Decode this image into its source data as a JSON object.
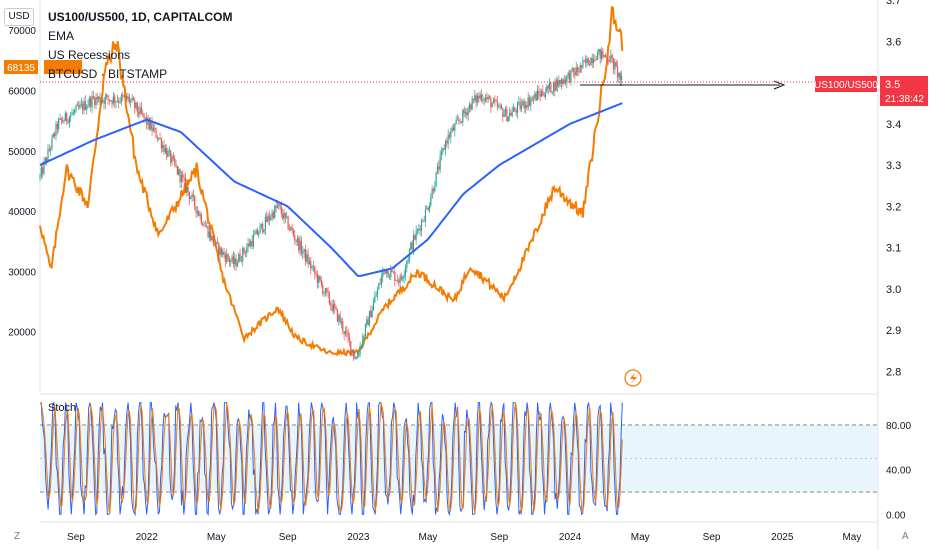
{
  "toolbar": {
    "currency_button": "USD",
    "zoom_button": "Z",
    "auto_button": "A"
  },
  "legend": {
    "title": "US100/US500, 1D, CAPITALCOM",
    "ema_label": "EMA",
    "recessions_label": "US Recessions",
    "btc_label": "BTCUSD · BITSTAMP"
  },
  "badges": {
    "btc_price": "68135",
    "symbol_tag": "US100/US500",
    "ratio_value": "3.5",
    "countdown": "21:38:42"
  },
  "colors": {
    "candle_up": "#26a69a",
    "candle_down": "#ef5350",
    "ema": "#2962ff",
    "btc": "#f57c00",
    "stoch_k": "#2962ff",
    "stoch_d": "#f57c00",
    "stoch_band": "#e3f2fd",
    "badge_red": "#f23645"
  },
  "chart_data": [
    {
      "type": "line",
      "name": "main-pane",
      "x_range": [
        "2021-07-01",
        "2025-06-15"
      ],
      "x_ticks": [
        {
          "date": "2021-09-01",
          "label": "Sep"
        },
        {
          "date": "2022-01-01",
          "label": "2022"
        },
        {
          "date": "2022-05-01",
          "label": "May"
        },
        {
          "date": "2022-09-01",
          "label": "Sep"
        },
        {
          "date": "2023-01-01",
          "label": "2023"
        },
        {
          "date": "2023-05-01",
          "label": "May"
        },
        {
          "date": "2023-09-01",
          "label": "Sep"
        },
        {
          "date": "2024-01-01",
          "label": "2024"
        },
        {
          "date": "2024-05-01",
          "label": "May"
        },
        {
          "date": "2024-09-01",
          "label": "Sep"
        },
        {
          "date": "2025-01-01",
          "label": "2025"
        },
        {
          "date": "2025-05-01",
          "label": "May"
        }
      ],
      "right_axis": {
        "ticks": [
          2.8,
          2.9,
          3.0,
          3.1,
          3.2,
          3.3,
          3.4,
          3.5,
          3.6,
          3.7
        ],
        "range": [
          2.75,
          3.7
        ]
      },
      "left_axis": {
        "ticks": [
          20000,
          30000,
          40000,
          50000,
          60000,
          70000
        ],
        "range": [
          10000,
          75000
        ]
      },
      "ratio_anchors": [
        [
          "2021-07-01",
          3.27
        ],
        [
          "2021-08-01",
          3.4
        ],
        [
          "2021-10-01",
          3.46
        ],
        [
          "2021-12-01",
          3.46
        ],
        [
          "2022-01-20",
          3.37
        ],
        [
          "2022-03-01",
          3.27
        ],
        [
          "2022-05-01",
          3.1
        ],
        [
          "2022-06-01",
          3.06
        ],
        [
          "2022-08-15",
          3.2
        ],
        [
          "2022-10-01",
          3.08
        ],
        [
          "2022-11-01",
          3.0
        ],
        [
          "2022-12-01",
          2.92
        ],
        [
          "2022-12-28",
          2.83
        ],
        [
          "2023-02-15",
          3.05
        ],
        [
          "2023-03-15",
          3.02
        ],
        [
          "2023-04-01",
          3.1
        ],
        [
          "2023-05-01",
          3.2
        ],
        [
          "2023-06-01",
          3.36
        ],
        [
          "2023-07-15",
          3.45
        ],
        [
          "2023-08-01",
          3.47
        ],
        [
          "2023-09-15",
          3.42
        ],
        [
          "2023-10-15",
          3.45
        ],
        [
          "2023-12-01",
          3.49
        ],
        [
          "2024-01-15",
          3.53
        ],
        [
          "2024-02-15",
          3.57
        ],
        [
          "2024-03-10",
          3.56
        ],
        [
          "2024-03-31",
          3.5
        ]
      ],
      "ema_anchors": [
        [
          "2021-07-01",
          3.3
        ],
        [
          "2021-10-01",
          3.36
        ],
        [
          "2022-01-01",
          3.41
        ],
        [
          "2022-03-01",
          3.38
        ],
        [
          "2022-06-01",
          3.26
        ],
        [
          "2022-09-01",
          3.2
        ],
        [
          "2022-11-15",
          3.1
        ],
        [
          "2023-01-01",
          3.03
        ],
        [
          "2023-03-01",
          3.05
        ],
        [
          "2023-05-01",
          3.12
        ],
        [
          "2023-07-01",
          3.23
        ],
        [
          "2023-09-01",
          3.3
        ],
        [
          "2023-11-01",
          3.35
        ],
        [
          "2024-01-01",
          3.4
        ],
        [
          "2024-03-31",
          3.45
        ]
      ],
      "btc_anchors": [
        [
          "2021-07-01",
          38000
        ],
        [
          "2021-07-20",
          30000
        ],
        [
          "2021-08-15",
          47000
        ],
        [
          "2021-09-22",
          41000
        ],
        [
          "2021-10-20",
          63000
        ],
        [
          "2021-11-10",
          68000
        ],
        [
          "2021-12-15",
          47000
        ],
        [
          "2022-01-22",
          36000
        ],
        [
          "2022-03-28",
          47000
        ],
        [
          "2022-05-12",
          29000
        ],
        [
          "2022-06-18",
          19000
        ],
        [
          "2022-08-15",
          24000
        ],
        [
          "2022-09-15",
          19000
        ],
        [
          "2022-11-10",
          16500
        ],
        [
          "2022-12-31",
          16500
        ],
        [
          "2023-02-15",
          24000
        ],
        [
          "2023-04-14",
          30000
        ],
        [
          "2023-06-15",
          25000
        ],
        [
          "2023-07-13",
          31000
        ],
        [
          "2023-09-10",
          25500
        ],
        [
          "2023-10-25",
          34500
        ],
        [
          "2023-12-05",
          44000
        ],
        [
          "2024-01-23",
          39500
        ],
        [
          "2024-02-28",
          62000
        ],
        [
          "2024-03-14",
          73000
        ],
        [
          "2024-03-31",
          68135
        ]
      ],
      "recession_periods": []
    },
    {
      "type": "line",
      "name": "Stoch",
      "title": "Stoch",
      "y_ticks": [
        0,
        40,
        80
      ],
      "y_tick_labels": [
        "0.00",
        "40.00",
        "80.00"
      ],
      "y_range": [
        -5,
        105
      ],
      "band": [
        20,
        80
      ],
      "midline": 50,
      "x_range": [
        "2021-07-01",
        "2025-06-15"
      ],
      "last_date": "2024-03-31"
    }
  ]
}
